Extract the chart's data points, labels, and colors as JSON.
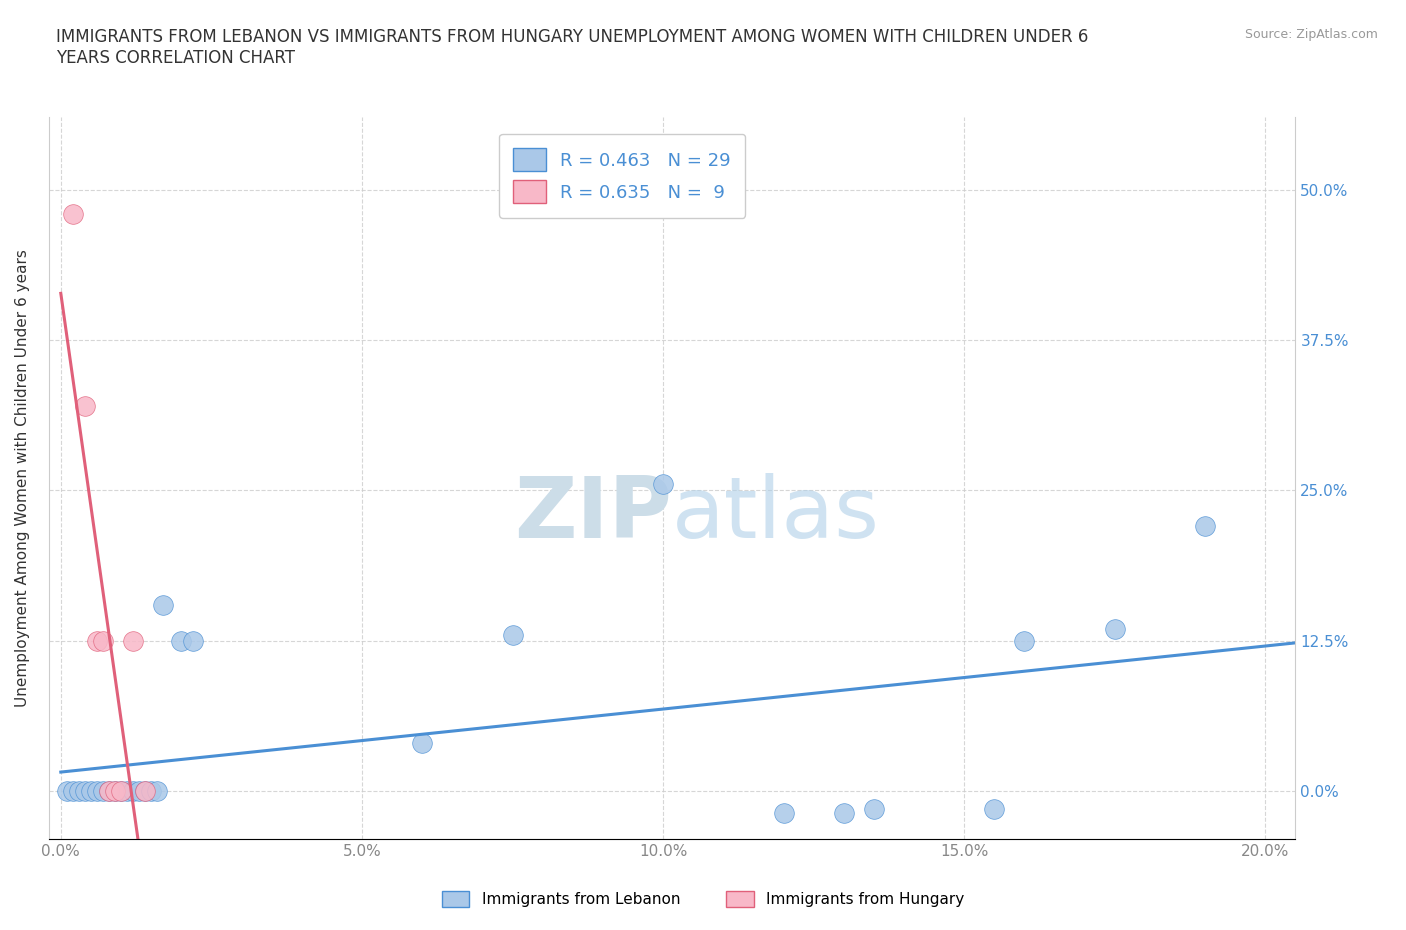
{
  "title": "IMMIGRANTS FROM LEBANON VS IMMIGRANTS FROM HUNGARY UNEMPLOYMENT AMONG WOMEN WITH CHILDREN UNDER 6\nYEARS CORRELATION CHART",
  "source_text": "Source: ZipAtlas.com",
  "ylabel": "Unemployment Among Women with Children Under 6 years",
  "xlim": [
    -0.002,
    0.205
  ],
  "ylim": [
    -0.04,
    0.56
  ],
  "xticks": [
    0.0,
    0.05,
    0.1,
    0.15,
    0.2
  ],
  "xticklabels": [
    "0.0%",
    "5.0%",
    "10.0%",
    "15.0%",
    "20.0%"
  ],
  "yticks": [
    0.0,
    0.125,
    0.25,
    0.375,
    0.5
  ],
  "yticklabels": [
    "0.0%",
    "12.5%",
    "25.0%",
    "37.5%",
    "50.0%"
  ],
  "lebanon_x": [
    0.001,
    0.002,
    0.003,
    0.004,
    0.005,
    0.006,
    0.007,
    0.008,
    0.009,
    0.01,
    0.011,
    0.012,
    0.013,
    0.014,
    0.015,
    0.016,
    0.017,
    0.02,
    0.022,
    0.06,
    0.075,
    0.1,
    0.12,
    0.13,
    0.135,
    0.155,
    0.16,
    0.175,
    0.19
  ],
  "lebanon_y": [
    0.0,
    0.0,
    0.0,
    0.0,
    0.0,
    0.0,
    0.0,
    0.0,
    0.0,
    0.0,
    0.0,
    0.0,
    0.0,
    0.0,
    0.0,
    0.0,
    0.155,
    0.125,
    0.125,
    0.04,
    0.13,
    0.255,
    -0.018,
    -0.018,
    -0.015,
    -0.015,
    0.125,
    0.135,
    0.22
  ],
  "hungary_x": [
    0.002,
    0.004,
    0.006,
    0.007,
    0.008,
    0.009,
    0.01,
    0.012,
    0.014
  ],
  "hungary_y": [
    0.48,
    0.32,
    0.125,
    0.125,
    0.0,
    0.0,
    0.0,
    0.125,
    0.0
  ],
  "lebanon_color": "#aac8e8",
  "hungary_color": "#f8b8c8",
  "lebanon_line_color": "#4a8fd4",
  "hungary_line_color": "#e0607a",
  "R_lebanon": 0.463,
  "N_lebanon": 29,
  "R_hungary": 0.635,
  "N_hungary": 9,
  "background_color": "#ffffff",
  "grid_color": "#cccccc",
  "watermark_color": "#ccdde8",
  "title_color": "#333333",
  "tick_label_color": "#888888",
  "right_tick_color": "#4a8fd4",
  "legend_label_lebanon": "Immigrants from Lebanon",
  "legend_label_hungary": "Immigrants from Hungary"
}
